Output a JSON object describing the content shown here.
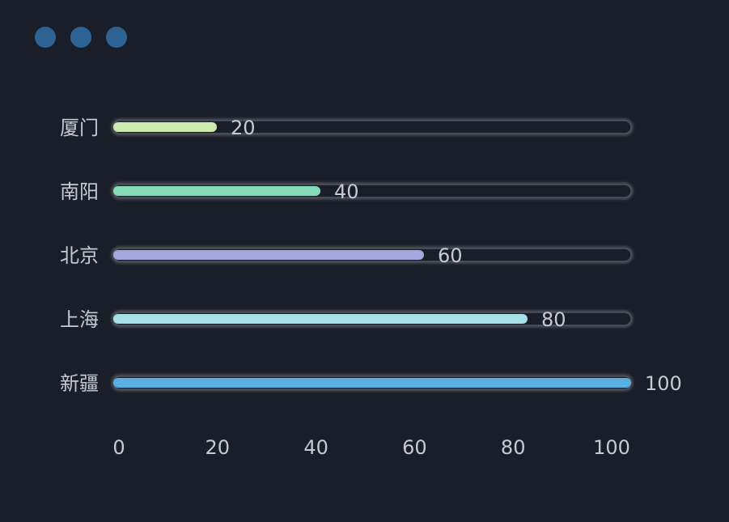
{
  "header": {
    "dots": [
      "#2c6394",
      "#2c6394",
      "#2c6394"
    ]
  },
  "chart_data": {
    "type": "bar",
    "orientation": "horizontal",
    "categories": [
      "厦门",
      "南阳",
      "北京",
      "上海",
      "新疆"
    ],
    "values": [
      20,
      40,
      60,
      80,
      100
    ],
    "colors": [
      "#cdebb0",
      "#86dcb8",
      "#a4a8e0",
      "#a5dfe8",
      "#5aaee0"
    ],
    "xlim": [
      0,
      100
    ],
    "xticks": [
      "0",
      "20",
      "40",
      "60",
      "80",
      "100"
    ],
    "data_labels": [
      "20",
      "40",
      "60",
      "80",
      "100"
    ],
    "grid": false,
    "track_color": "#1a1e28",
    "track_border": "#50545c",
    "text_color": "#c8cad2"
  }
}
